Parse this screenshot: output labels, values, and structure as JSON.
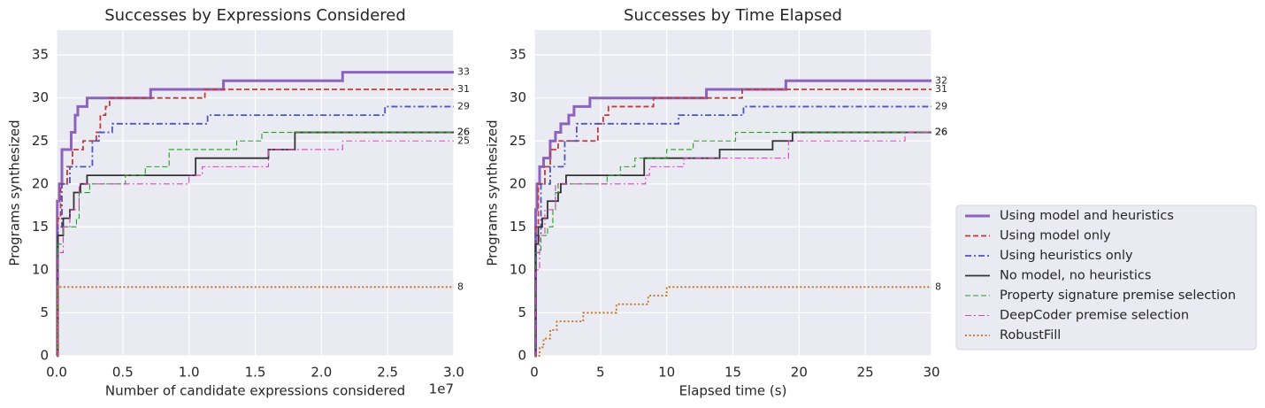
{
  "chart_data": [
    {
      "type": "step",
      "title": "Successes by Expressions Considered",
      "x_label": "Number of candidate expressions considered",
      "x_offset_label": "1e7",
      "y_label": "Programs synthesized",
      "xlim": [
        0,
        3
      ],
      "ylim": [
        0,
        37.9
      ],
      "grid": true,
      "xticks": [
        {
          "value": 0,
          "label": "0.0"
        },
        0.5,
        {
          "value": 1,
          "label": "1.0"
        },
        1.5,
        {
          "value": 2,
          "label": "2.0"
        },
        2.5,
        {
          "value": 3,
          "label": "3.0"
        }
      ],
      "yticks": [
        0,
        5,
        10,
        15,
        20,
        25,
        30,
        35
      ],
      "series": [
        {
          "color": "#8c63bd",
          "linestyle": "solid",
          "linewidth": 3,
          "x": [
            0,
            0.005,
            0.02,
            0.04,
            0.11,
            0.14,
            0.16,
            0.23,
            0.71,
            1.26,
            2.16,
            3
          ],
          "values": [
            0,
            18,
            20,
            24,
            26,
            28,
            29,
            30,
            31,
            32,
            33,
            33
          ]
        },
        {
          "color": "#c23b3b",
          "linestyle": "dashed",
          "linewidth": 1.8,
          "x": [
            0,
            0.01,
            0.03,
            0.08,
            0.12,
            0.2,
            0.3,
            0.33,
            0.37,
            0.4,
            1.12,
            3
          ],
          "values": [
            0,
            16,
            20,
            22,
            24,
            25,
            26,
            28,
            29,
            30,
            31,
            31
          ]
        },
        {
          "color": "#4c56c0",
          "linestyle": "dashdot",
          "linewidth": 1.8,
          "x": [
            0,
            0.01,
            0.04,
            0.1,
            0.27,
            0.32,
            0.42,
            1.14,
            2.48,
            3
          ],
          "values": [
            0,
            15,
            20,
            22,
            25,
            26,
            27,
            28,
            29,
            29
          ]
        },
        {
          "color": "#333333",
          "linestyle": "solid",
          "linewidth": 1.8,
          "x": [
            0,
            0.01,
            0.05,
            0.1,
            0.13,
            0.18,
            0.23,
            1.05,
            1.6,
            1.8,
            3
          ],
          "values": [
            0,
            14,
            16,
            17,
            19,
            20,
            21,
            23,
            24,
            26,
            26
          ]
        },
        {
          "color": "#1fa31f",
          "linestyle": "dashed",
          "linewidth": 1.1,
          "x": [
            0,
            0.01,
            0.05,
            0.15,
            0.17,
            0.25,
            0.52,
            0.67,
            0.85,
            1.36,
            1.55,
            3
          ],
          "values": [
            0,
            13,
            15,
            16,
            19,
            20,
            21,
            22,
            24,
            25,
            26,
            26
          ]
        },
        {
          "color": "#e040c0",
          "linestyle": "dashdot",
          "linewidth": 1.1,
          "x": [
            0,
            0.01,
            0.05,
            0.1,
            0.17,
            1,
            1.1,
            1.6,
            2.16,
            3
          ],
          "values": [
            0,
            12,
            15,
            17,
            20,
            21,
            22,
            24,
            25,
            25
          ]
        },
        {
          "color": "#c0701a",
          "linestyle": "dotted",
          "linewidth": 1.8,
          "x": [
            0,
            0.003,
            3
          ],
          "values": [
            0,
            8,
            8
          ]
        }
      ]
    },
    {
      "type": "step",
      "title": "Successes by Time Elapsed",
      "x_label": "Elapsed time (s)",
      "y_label": "Programs synthesized",
      "xlim": [
        0,
        30
      ],
      "ylim": [
        0,
        37.9
      ],
      "grid": true,
      "legend": "outside right",
      "xticks": [
        0,
        5,
        10,
        15,
        20,
        25,
        30
      ],
      "yticks": [
        0,
        5,
        10,
        15,
        20,
        25,
        30,
        35
      ],
      "series": [
        {
          "name": "Using model and heuristics",
          "color": "#8c63bd",
          "linestyle": "solid",
          "linewidth": 3,
          "x": [
            0,
            0.1,
            0.2,
            0.4,
            0.7,
            1.2,
            1.6,
            2,
            2.6,
            3,
            4.2,
            13,
            19,
            30
          ],
          "values": [
            0,
            17,
            20,
            22,
            23,
            25,
            26,
            27,
            28,
            29,
            30,
            31,
            32,
            32
          ]
        },
        {
          "name": "Using model only",
          "color": "#c23b3b",
          "linestyle": "dashed",
          "linewidth": 1.8,
          "x": [
            0,
            0.1,
            0.3,
            0.8,
            1.2,
            1.8,
            4.8,
            5.2,
            5.6,
            9,
            15.7,
            30
          ],
          "values": [
            0,
            15,
            20,
            22,
            24,
            25,
            27,
            28,
            29,
            30,
            31,
            31
          ]
        },
        {
          "name": "Using heuristics only",
          "color": "#4c56c0",
          "linestyle": "dashdot",
          "linewidth": 1.8,
          "x": [
            0,
            0.1,
            0.5,
            1.2,
            2.3,
            3.2,
            10.9,
            15.8,
            30
          ],
          "values": [
            0,
            14,
            20,
            22,
            25,
            27,
            28,
            29,
            29
          ]
        },
        {
          "name": "No model, no heuristics",
          "color": "#333333",
          "linestyle": "solid",
          "linewidth": 1.8,
          "x": [
            0,
            0.1,
            0.3,
            0.6,
            1,
            1.8,
            2,
            2.4,
            8.3,
            14,
            18,
            19.5,
            30
          ],
          "values": [
            0,
            13,
            15,
            16,
            18,
            19,
            20,
            21,
            23,
            24,
            25,
            26,
            26
          ]
        },
        {
          "name": "Property signature premise selection",
          "color": "#1fa31f",
          "linestyle": "dashed",
          "linewidth": 1.1,
          "x": [
            0,
            0.1,
            0.5,
            1,
            1.4,
            1.6,
            1.8,
            5.5,
            6.5,
            7.6,
            10,
            12,
            15.2,
            30
          ],
          "values": [
            0,
            12,
            14,
            15,
            17,
            19,
            20,
            21,
            22,
            23,
            24,
            25,
            26,
            26
          ]
        },
        {
          "name": "DeepCoder premise selection",
          "color": "#e040c0",
          "linestyle": "dashdot",
          "linewidth": 1.1,
          "x": [
            0,
            0.1,
            0.4,
            0.8,
            1.6,
            8.4,
            8.7,
            11.3,
            19.2,
            28,
            30
          ],
          "values": [
            0,
            10,
            14,
            17,
            20,
            21,
            22,
            23,
            25,
            26,
            26
          ]
        },
        {
          "name": "RobustFill",
          "color": "#c0701a",
          "linestyle": "dotted",
          "linewidth": 1.8,
          "x": [
            0,
            0.4,
            0.7,
            1.2,
            1.7,
            3.7,
            6.2,
            8.6,
            10,
            30
          ],
          "values": [
            0,
            1,
            2,
            3,
            4,
            5,
            6,
            7,
            8,
            8
          ]
        }
      ]
    }
  ]
}
